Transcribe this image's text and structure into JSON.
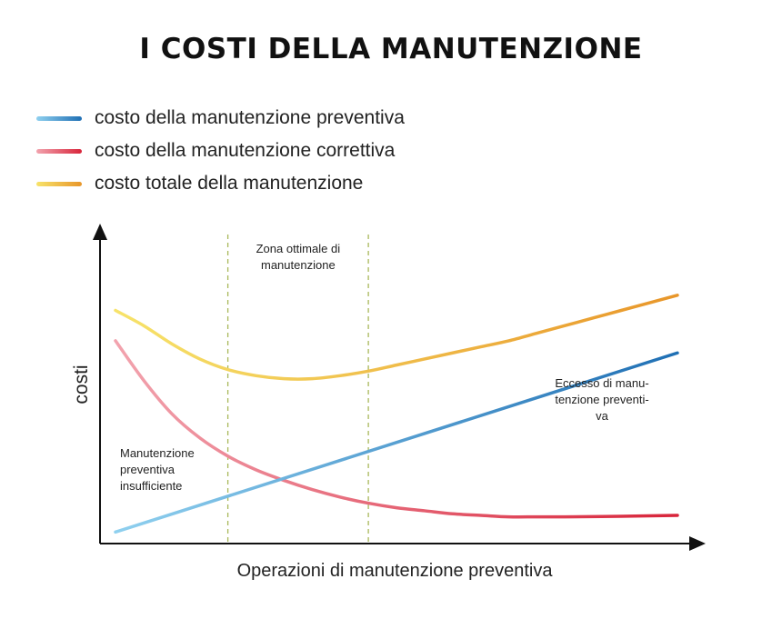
{
  "chart_data": {
    "type": "line",
    "title": "I COSTI DELLA MANUTENZIONE",
    "xlabel": "Operazioni di manutenzione preventiva",
    "ylabel": "costi",
    "xlim": [
      0,
      100
    ],
    "ylim": [
      0,
      100
    ],
    "grid": false,
    "legend_position": "top-left",
    "optimal_zone": {
      "start": 20,
      "end": 45,
      "label": "Zona ottimale di manutenzione"
    },
    "series": [
      {
        "name": "costo della manutenzione preventiva",
        "color_start": "#8fd0ef",
        "color_end": "#1f6fb4",
        "x": [
          0,
          100
        ],
        "y": [
          2,
          61
        ]
      },
      {
        "name": "costo della manutenzione correttiva",
        "color_start": "#f2a3ae",
        "color_end": "#d8243a",
        "x": [
          0,
          5,
          10,
          15,
          20,
          25,
          30,
          35,
          40,
          45,
          50,
          55,
          60,
          65,
          70,
          75,
          80,
          90,
          100
        ],
        "y": [
          65,
          52,
          41,
          33,
          27,
          22.5,
          19,
          16,
          13.5,
          11.5,
          10,
          9,
          8,
          7.5,
          7,
          7,
          7,
          7.2,
          7.5
        ]
      },
      {
        "name": "costo totale della manutenzione",
        "color_start": "#f7e36a",
        "color_end": "#e8962a",
        "x": [
          0,
          5,
          10,
          15,
          20,
          25,
          30,
          35,
          40,
          45,
          50,
          55,
          60,
          65,
          70,
          75,
          80,
          85,
          90,
          95,
          100
        ],
        "y": [
          75,
          70,
          64,
          59,
          55.5,
          53.5,
          52.5,
          52.5,
          53.5,
          55,
          57,
          59,
          61,
          63,
          65,
          67.5,
          70,
          72.5,
          75,
          77.5,
          80
        ]
      }
    ],
    "annotations": [
      {
        "id": "insufficiente",
        "lines": [
          "Manutenzione",
          "preventiva",
          "insufficiente"
        ]
      },
      {
        "id": "eccesso",
        "lines": [
          "Eccesso di manu-",
          "tenzione preventi-",
          "va"
        ]
      }
    ]
  }
}
